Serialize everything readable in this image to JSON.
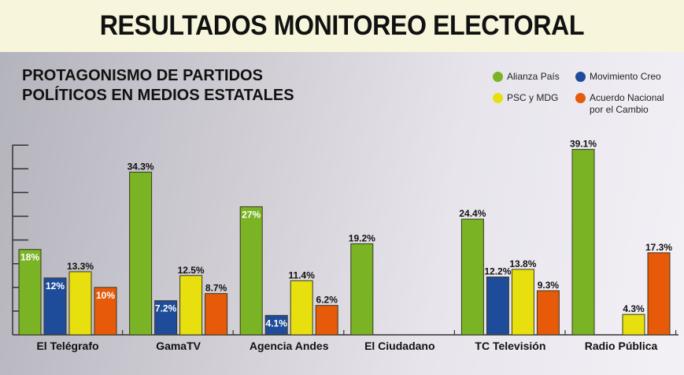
{
  "header": {
    "title": "RESULTADOS MONITOREO ELECTORAL"
  },
  "chart_data": {
    "type": "bar",
    "title": "PROTAGONISMO DE PARTIDOS POLÍTICOS EN MEDIOS ESTATALES",
    "title_lines": [
      "PROTAGONISMO DE PARTIDOS",
      "POLÍTICOS EN MEDIOS ESTATALES"
    ],
    "xlabel": "",
    "ylabel": "",
    "ylim": [
      0,
      40
    ],
    "yticks": [
      5,
      10,
      15,
      20,
      25,
      30,
      35,
      40
    ],
    "grid": false,
    "legend_position": "top-right",
    "categories": [
      "El Telégrafo",
      "GamaTV",
      "Agencia Andes",
      "El Ciudadano",
      "TC Televisión",
      "Radio Pública"
    ],
    "series": [
      {
        "name": "Alianza País",
        "color": "#7ab324",
        "values": [
          18,
          34.3,
          27,
          19.2,
          24.4,
          39.1
        ],
        "labels": [
          "18%",
          "34.3%",
          "27%",
          "19.2%",
          "24.4%",
          "39.1%"
        ],
        "label_inside": [
          true,
          false,
          true,
          false,
          false,
          false
        ]
      },
      {
        "name": "Movimiento Creo",
        "color": "#1e4c9a",
        "values": [
          12,
          7.2,
          4.1,
          null,
          12.2,
          null
        ],
        "labels": [
          "12%",
          "7.2%",
          "4.1%",
          null,
          "12.2%",
          null
        ],
        "label_inside": [
          true,
          true,
          true,
          false,
          false,
          false
        ]
      },
      {
        "name": "PSC y MDG",
        "color": "#e8e00e",
        "values": [
          13.3,
          12.5,
          11.4,
          null,
          13.8,
          4.3
        ],
        "labels": [
          "13.3%",
          "12.5%",
          "11.4%",
          null,
          "13.8%",
          "4.3%"
        ],
        "label_inside": [
          false,
          false,
          false,
          false,
          false,
          false
        ]
      },
      {
        "name": "Acuerdo Nacional por el Cambio",
        "color": "#e65a0a",
        "values": [
          10,
          8.7,
          6.2,
          null,
          9.3,
          17.3
        ],
        "labels": [
          "10%",
          "8.7%",
          "6.2%",
          null,
          "9.3%",
          "17.3%"
        ],
        "label_inside": [
          true,
          false,
          false,
          false,
          false,
          false
        ]
      }
    ],
    "legend": [
      {
        "label_lines": [
          "Alianza País"
        ],
        "color": "#7ab324"
      },
      {
        "label_lines": [
          "Movimiento Creo"
        ],
        "color": "#1e4c9a"
      },
      {
        "label_lines": [
          "PSC y MDG"
        ],
        "color": "#e8e00e"
      },
      {
        "label_lines": [
          "Acuerdo Nacional",
          "por el Cambio"
        ],
        "color": "#e65a0a"
      }
    ]
  }
}
